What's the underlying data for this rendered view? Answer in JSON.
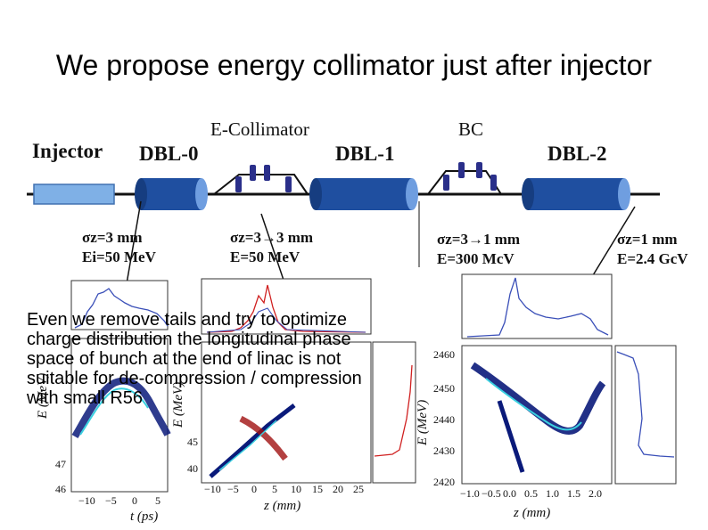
{
  "title": "We propose energy collimator just after injector",
  "labels": {
    "injector": "Injector",
    "dbl0": "DBL-0",
    "ecoll": "E-Collimator",
    "dbl1": "DBL-1",
    "bc": "BC",
    "dbl2": "DBL-2"
  },
  "params": {
    "p1_sigma": "σz=3 mm",
    "p1_energy": "Ei=50   MeV",
    "p2_sigma": "σz=3→3 mm",
    "p2_energy": "E=50   MeV",
    "p3_sigma": "σz=3→1 mm",
    "p3_energy": "E=300   McV",
    "p4_sigma": "σz=1 mm",
    "p4_energy": "E=2.4 GcV"
  },
  "overlay_text": "Even we remove tails and try to optimize charge distribution the longitudinal phase space of bunch at the end of linac is not suitable for de-compression / compression with small R56",
  "plots": {
    "p1": {
      "y_ticks": [
        "47",
        "46"
      ],
      "x_ticks": [
        "−10",
        "−5",
        "0",
        "5"
      ],
      "xlabel": "t (ps)",
      "ylabel": "E (MeV)"
    },
    "p2": {
      "y_ticks": [
        "40",
        "45"
      ],
      "x_ticks": [
        "−10",
        "−5",
        "0",
        "5",
        "10",
        "15",
        "20",
        "25"
      ],
      "xlabel": "z (mm)",
      "ylabel": "E (MeV)"
    },
    "p3": {
      "y_ticks": [
        "2460",
        "2450",
        "2440",
        "2430",
        "2420"
      ],
      "x_ticks": [
        "−1.0",
        "−0.5",
        "0.0",
        "0.5",
        "1.0",
        "1.5",
        "2.0"
      ],
      "xlabel": "z (mm)",
      "ylabel": "E (MeV)"
    }
  },
  "colors": {
    "beamline": "#111111",
    "injector_fill": "#7fb0e6",
    "dbl_fill": "#1f4fa0",
    "magnet": "#2a2f8a",
    "hist_blue": "#3a4fb8",
    "hist_red": "#d02020",
    "phase_dark": "#0a1a7a",
    "phase_light": "#3ad0e0"
  }
}
